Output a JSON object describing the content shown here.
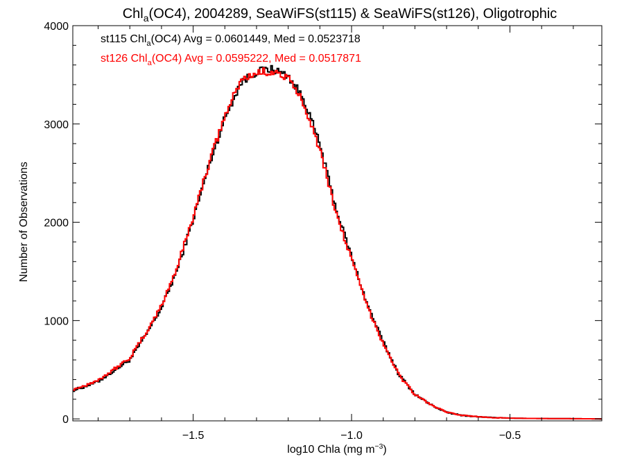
{
  "chart_data": {
    "type": "line",
    "title": {
      "parts": [
        {
          "text": "Chl",
          "baseline": "normal"
        },
        {
          "text": "a",
          "baseline": "sub"
        },
        {
          "text": "(OC4), 2004289, SeaWiFS(st115) & SeaWiFS(st126), Oligotrophic",
          "baseline": "normal"
        }
      ]
    },
    "xlabel": {
      "parts": [
        {
          "text": "log10 Chla (mg m",
          "baseline": "normal"
        },
        {
          "text": "−3",
          "baseline": "super"
        },
        {
          "text": ")",
          "baseline": "normal"
        }
      ]
    },
    "ylabel": "Number of Observations",
    "xlim": [
      -1.88,
      -0.21
    ],
    "ylim": [
      -20,
      4000
    ],
    "xticks": [
      -1.5,
      -1.0,
      -0.5
    ],
    "xtick_labels": [
      "−1.5",
      "−1.0",
      "−0.5"
    ],
    "yticks": [
      0,
      1000,
      2000,
      3000,
      4000
    ],
    "ytick_labels": [
      "0",
      "1000",
      "2000",
      "3000",
      "4000"
    ],
    "grid": false,
    "legend": {
      "placement": "top-left",
      "entries": [
        {
          "series": "st115",
          "color": "#000000",
          "parts": [
            {
              "text": "st115 Chl",
              "baseline": "normal"
            },
            {
              "text": "a",
              "baseline": "sub"
            },
            {
              "text": "(OC4) Avg = 0.0601449, Med = 0.0523718",
              "baseline": "normal"
            }
          ]
        },
        {
          "series": "st126",
          "color": "#ff0000",
          "parts": [
            {
              "text": "st126 Chl",
              "baseline": "normal"
            },
            {
              "text": "a",
              "baseline": "sub"
            },
            {
              "text": "(OC4) Avg = 0.0595222, Med = 0.0517871",
              "baseline": "normal"
            }
          ]
        }
      ]
    },
    "series": [
      {
        "id": "st115",
        "color": "#000000",
        "step": true,
        "x": [
          -1.88,
          -1.85,
          -1.8,
          -1.75,
          -1.7,
          -1.65,
          -1.6,
          -1.55,
          -1.5,
          -1.45,
          -1.4,
          -1.35,
          -1.3,
          -1.25,
          -1.2,
          -1.15,
          -1.1,
          -1.05,
          -1.0,
          -0.95,
          -0.9,
          -0.85,
          -0.8,
          -0.75,
          -0.7,
          -0.65,
          -0.6,
          -0.55,
          -0.5,
          -0.45,
          -0.4,
          -0.35,
          -0.3,
          -0.25,
          -0.21
        ],
        "y": [
          290,
          320,
          380,
          490,
          600,
          850,
          1130,
          1520,
          2030,
          2580,
          3060,
          3420,
          3530,
          3560,
          3490,
          3250,
          2790,
          2150,
          1650,
          1160,
          780,
          450,
          250,
          145,
          65,
          35,
          22,
          12,
          8,
          5,
          4,
          3,
          2,
          1,
          0
        ]
      },
      {
        "id": "st126",
        "color": "#ff0000",
        "step": true,
        "x": [
          -1.88,
          -1.85,
          -1.8,
          -1.75,
          -1.7,
          -1.65,
          -1.6,
          -1.55,
          -1.5,
          -1.45,
          -1.4,
          -1.35,
          -1.3,
          -1.25,
          -1.2,
          -1.15,
          -1.1,
          -1.05,
          -1.0,
          -0.95,
          -0.9,
          -0.85,
          -0.8,
          -0.75,
          -0.7,
          -0.65,
          -0.6,
          -0.55,
          -0.5,
          -0.45,
          -0.4,
          -0.35,
          -0.3,
          -0.25,
          -0.21
        ],
        "y": [
          300,
          330,
          395,
          505,
          620,
          870,
          1150,
          1550,
          2060,
          2600,
          3080,
          3440,
          3520,
          3540,
          3460,
          3210,
          2740,
          2110,
          1620,
          1140,
          770,
          445,
          248,
          145,
          66,
          36,
          22,
          12,
          8,
          5,
          4,
          3,
          2,
          1,
          0
        ]
      }
    ]
  }
}
